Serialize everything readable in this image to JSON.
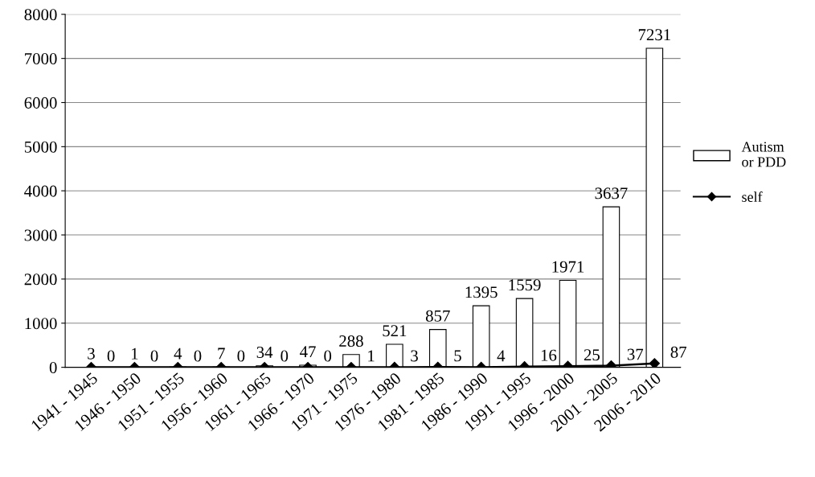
{
  "chart_data": {
    "type": "bar",
    "categories": [
      "1941 - 1945",
      "1946 - 1950",
      "1951 - 1955",
      "1956 - 1960",
      "1961 - 1965",
      "1966 - 1970",
      "1971 - 1975",
      "1976 - 1980",
      "1981 - 1985",
      "1986 - 1990",
      "1991 - 1995",
      "1996 - 2000",
      "2001 - 2005",
      "2006 - 2010"
    ],
    "series": [
      {
        "name": "Autism or PDD",
        "color": "#ffffff",
        "values": [
          3,
          1,
          4,
          7,
          34,
          47,
          288,
          521,
          857,
          1395,
          1559,
          1971,
          3637,
          7231
        ]
      },
      {
        "name": "self",
        "type": "line",
        "color": "#000000",
        "values": [
          0,
          0,
          0,
          0,
          0,
          0,
          1,
          3,
          5,
          4,
          16,
          25,
          37,
          87
        ]
      }
    ],
    "ylim": [
      0,
      8000
    ],
    "yticks": [
      0,
      1000,
      2000,
      3000,
      4000,
      5000,
      6000,
      7000,
      8000
    ],
    "grid": "y",
    "legend": "right",
    "marker": "diamond",
    "line_style": "solid",
    "data_labels": true
  }
}
